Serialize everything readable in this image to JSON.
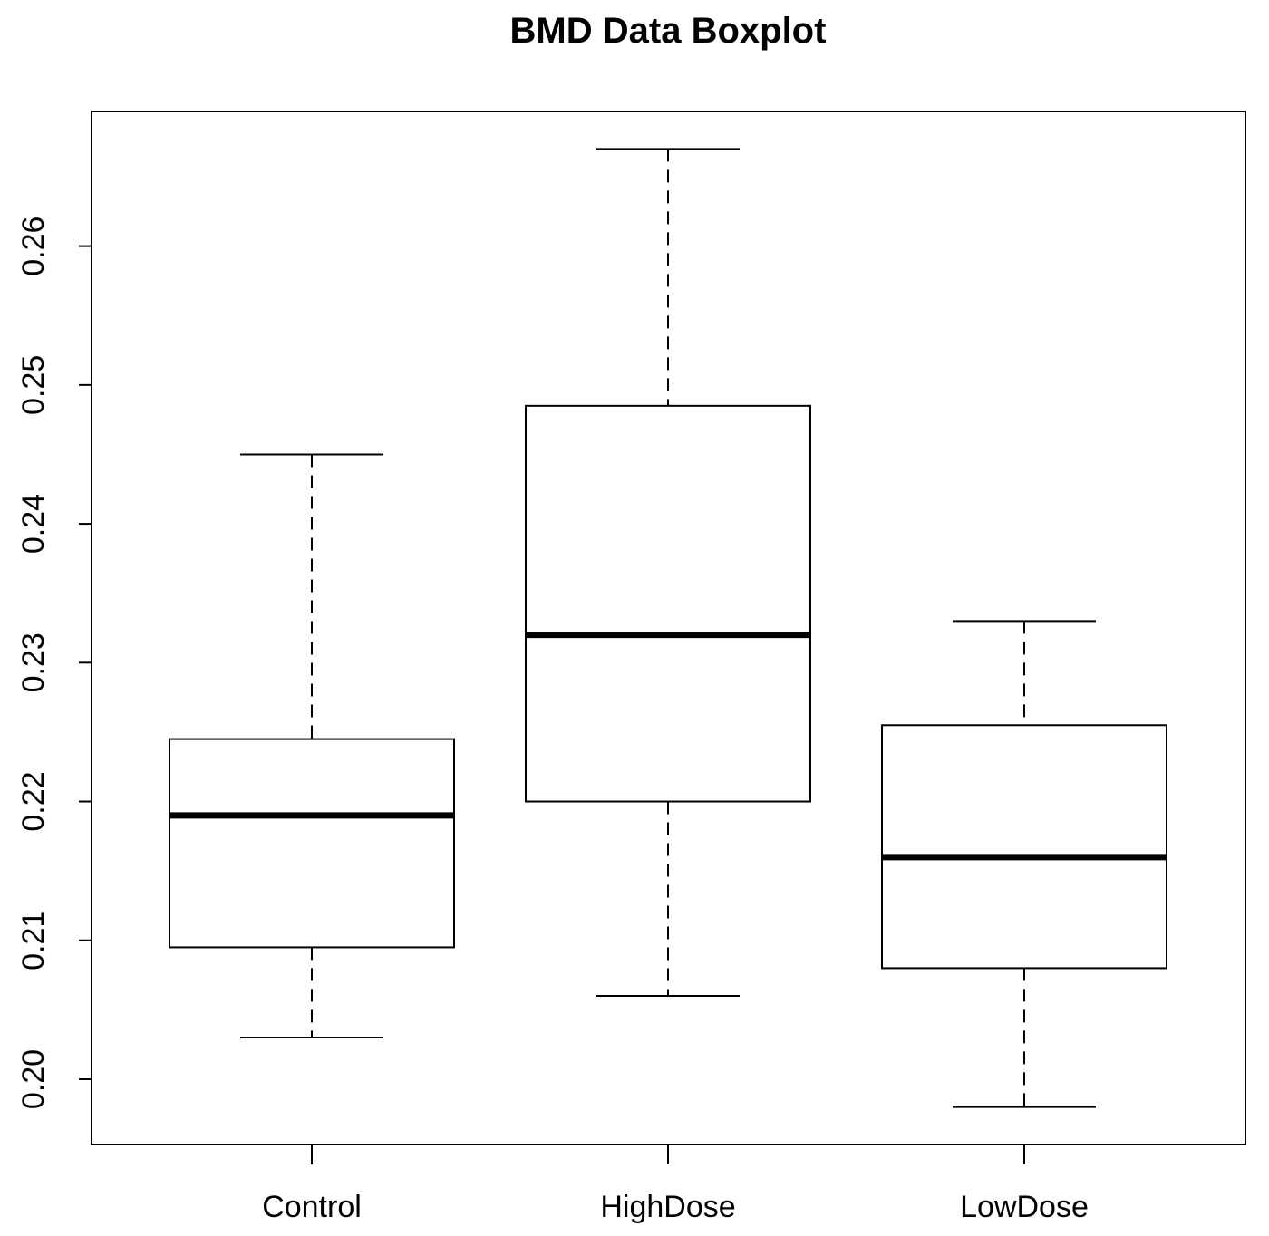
{
  "chart_data": {
    "type": "box",
    "title": "BMD Data Boxplot",
    "xlabel": "",
    "ylabel": "",
    "categories": [
      "Control",
      "HighDose",
      "LowDose"
    ],
    "boxes": [
      {
        "category": "Control",
        "min": 0.203,
        "q1": 0.2095,
        "median": 0.219,
        "q3": 0.2245,
        "max": 0.245
      },
      {
        "category": "HighDose",
        "min": 0.206,
        "q1": 0.22,
        "median": 0.232,
        "q3": 0.2485,
        "max": 0.267
      },
      {
        "category": "LowDose",
        "min": 0.198,
        "q1": 0.208,
        "median": 0.216,
        "q3": 0.2255,
        "max": 0.233
      }
    ],
    "yticks": [
      "0.20",
      "0.21",
      "0.22",
      "0.23",
      "0.24",
      "0.25",
      "0.26"
    ],
    "ylim": [
      0.1953,
      0.2697
    ],
    "grid": false
  }
}
